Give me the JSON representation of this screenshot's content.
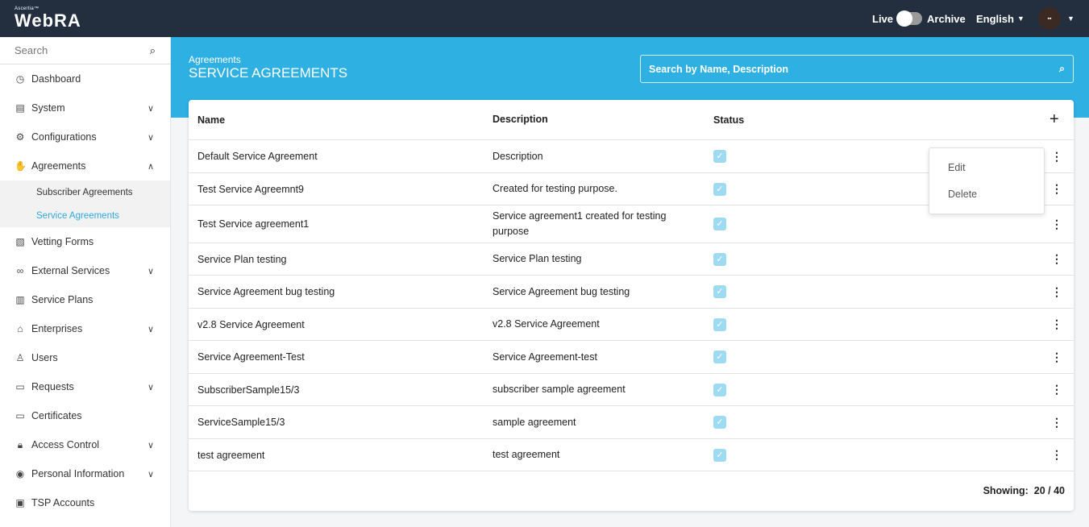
{
  "topbar": {
    "brand_small": "Ascertia™",
    "brand": "WebRA",
    "live": "Live",
    "archive": "Archive",
    "language": "English",
    "avatar": "▪▪"
  },
  "sidebar": {
    "search_placeholder": "Search",
    "items": [
      {
        "label": "Dashboard",
        "icon": "dashboard-icon",
        "glyph": "◷"
      },
      {
        "label": "System",
        "icon": "system-icon",
        "glyph": "▤",
        "chevron": "⌄"
      },
      {
        "label": "Configurations",
        "icon": "gear-icon",
        "glyph": "⚙",
        "chevron": "⌄"
      },
      {
        "label": "Agreements",
        "icon": "handshake-icon",
        "glyph": "✋",
        "chevron": "⌃"
      },
      {
        "label": "Vetting Forms",
        "icon": "form-icon",
        "glyph": "▧"
      },
      {
        "label": "External Services",
        "icon": "link-icon",
        "glyph": "∞",
        "chevron": "⌄"
      },
      {
        "label": "Service Plans",
        "icon": "plan-icon",
        "glyph": "▥"
      },
      {
        "label": "Enterprises",
        "icon": "bank-icon",
        "glyph": "⌂",
        "chevron": "⌄"
      },
      {
        "label": "Users",
        "icon": "users-icon",
        "glyph": "♙"
      },
      {
        "label": "Requests",
        "icon": "requests-icon",
        "glyph": "▭",
        "chevron": "⌄"
      },
      {
        "label": "Certificates",
        "icon": "certificate-icon",
        "glyph": "▭"
      },
      {
        "label": "Access Control",
        "icon": "lock-icon",
        "glyph": "🔒︎",
        "chevron": "⌄"
      },
      {
        "label": "Personal Information",
        "icon": "person-icon",
        "glyph": "◉",
        "chevron": "⌄"
      },
      {
        "label": "TSP Accounts",
        "icon": "account-icon",
        "glyph": "▣"
      }
    ],
    "sub_items": [
      "Subscriber Agreements",
      "Service Agreements"
    ]
  },
  "page": {
    "breadcrumb": "Agreements",
    "title": "SERVICE AGREEMENTS",
    "search_placeholder": "Search by Name, Description"
  },
  "table": {
    "headers": [
      "Name",
      "Description",
      "Status"
    ],
    "rows": [
      [
        "Default Service Agreement",
        "Description"
      ],
      [
        "Test Service Agreemnt9",
        "Created for testing purpose."
      ],
      [
        "Test Service agreement1",
        "Service agreement1 created for testing purpose"
      ],
      [
        "Service Plan testing",
        "Service Plan testing"
      ],
      [
        "Service Agreement bug testing",
        "Service Agreement bug testing"
      ],
      [
        "v2.8 Service Agreement",
        "v2.8 Service Agreement"
      ],
      [
        "Service Agreement-Test",
        "Service Agreement-test"
      ],
      [
        "SubscriberSample15/3",
        "subscriber sample agreement"
      ],
      [
        "ServiceSample15/3",
        "sample agreement"
      ],
      [
        "test agreement",
        "test agreement"
      ]
    ],
    "showing_label": "Showing:",
    "showing": "20 / 40"
  },
  "context_menu": {
    "edit": "Edit",
    "delete": "Delete"
  }
}
